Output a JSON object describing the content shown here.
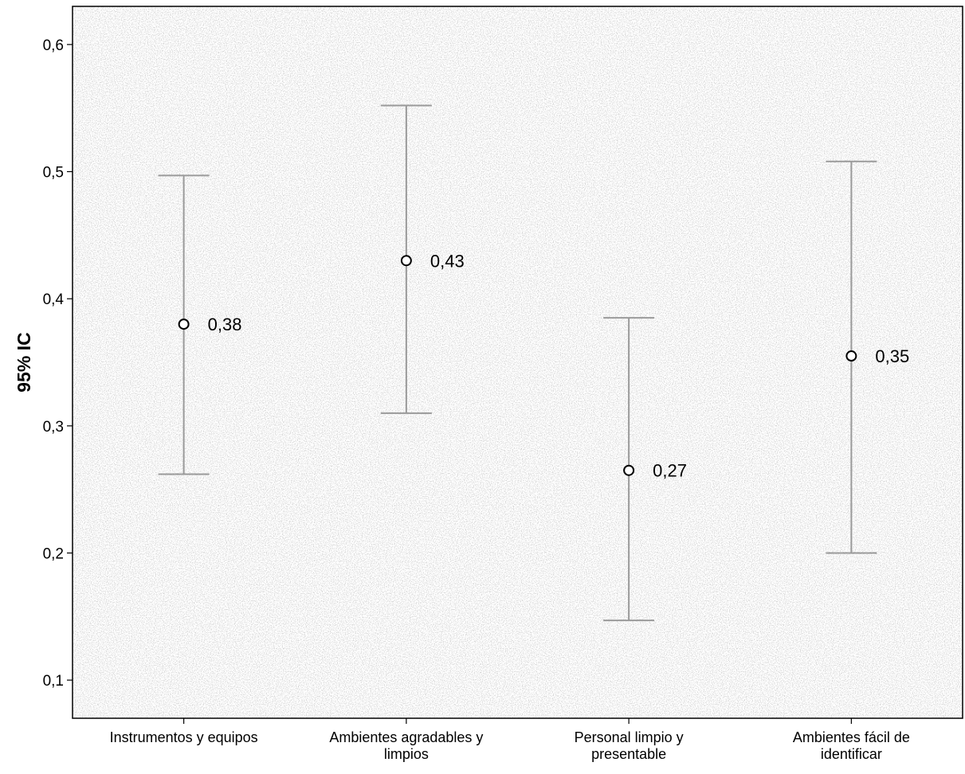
{
  "chart_data": {
    "type": "errorbar",
    "ylabel": "95% IC",
    "xlabel": "",
    "ylim": [
      0.07,
      0.63
    ],
    "yticks": [
      0.1,
      0.2,
      0.3,
      0.4,
      0.5,
      0.6
    ],
    "ytick_labels": [
      "0,1",
      "0,2",
      "0,3",
      "0,4",
      "0,5",
      "0,6"
    ],
    "grid": false,
    "categories": [
      [
        "Instrumentos y equipos"
      ],
      [
        "Ambientes agradables y",
        "limpios"
      ],
      [
        "Personal limpio y",
        "presentable"
      ],
      [
        "Ambientes fácil de",
        "identificar"
      ]
    ],
    "points": [
      {
        "mean": 0.38,
        "lower": 0.262,
        "upper": 0.497,
        "label": "0,38"
      },
      {
        "mean": 0.43,
        "lower": 0.31,
        "upper": 0.552,
        "label": "0,43"
      },
      {
        "mean": 0.265,
        "lower": 0.147,
        "upper": 0.385,
        "label": "0,27"
      },
      {
        "mean": 0.355,
        "lower": 0.2,
        "upper": 0.508,
        "label": "0,35"
      }
    ],
    "colors": {
      "background": "#ffffff",
      "axis": "#000000",
      "errorbar": "#9a9a9a",
      "marker": "#000000"
    }
  }
}
